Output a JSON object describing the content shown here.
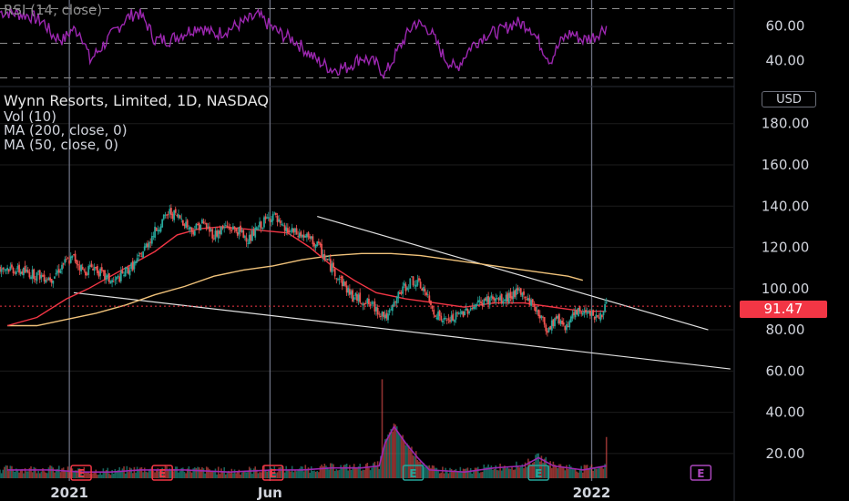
{
  "legend": {
    "title": "Wynn Resorts, Limited, 1D, NASDAQ",
    "vol": "Vol (10)",
    "ma200": "MA (200, close, 0)",
    "ma50": "MA (50, close, 0)",
    "rsi": "RSI (14, close)"
  },
  "currency": "USD",
  "last_price_label": "91.47",
  "colors": {
    "background": "#000000",
    "up": "#26a69a",
    "down": "#ef5350",
    "ma50": "#f23645",
    "ma200": "#f0c27a",
    "rsi": "#9c27b0",
    "trendline": "#e0e0e0",
    "earnings_red": "#f23645",
    "earnings_teal": "#26a69a",
    "earnings_purple": "#ab47bc"
  },
  "chart_data": {
    "type": "candlestick",
    "symbol": "Wynn Resorts, Limited",
    "interval": "1D",
    "exchange": "NASDAQ",
    "x_ticks": [
      "2021",
      "Jun",
      "2022"
    ],
    "y_ticks": [
      "180.00",
      "160.00",
      "140.00",
      "120.00",
      "100.00",
      "80.00",
      "60.00",
      "40.00",
      "20.00"
    ],
    "ylim": [
      8,
      198
    ],
    "last_price": 91.47,
    "price_path_keypoints": [
      [
        -30,
        110
      ],
      [
        0,
        105
      ],
      [
        8,
        112
      ],
      [
        15,
        115
      ],
      [
        22,
        108
      ],
      [
        28,
        111
      ],
      [
        35,
        106
      ],
      [
        42,
        103
      ],
      [
        50,
        108
      ],
      [
        58,
        113
      ],
      [
        65,
        122
      ],
      [
        72,
        130
      ],
      [
        80,
        137
      ],
      [
        88,
        134
      ],
      [
        95,
        128
      ],
      [
        102,
        132
      ],
      [
        110,
        126
      ],
      [
        118,
        130
      ],
      [
        126,
        128
      ],
      [
        134,
        124
      ],
      [
        142,
        131
      ],
      [
        150,
        136
      ],
      [
        156,
        129
      ],
      [
        164,
        127
      ],
      [
        172,
        125
      ],
      [
        180,
        121
      ],
      [
        188,
        112
      ],
      [
        196,
        104
      ],
      [
        204,
        96
      ],
      [
        212,
        94
      ],
      [
        220,
        90
      ],
      [
        228,
        86
      ],
      [
        236,
        98
      ],
      [
        244,
        104
      ],
      [
        252,
        100
      ],
      [
        258,
        90
      ],
      [
        266,
        84
      ],
      [
        274,
        86
      ],
      [
        282,
        90
      ],
      [
        290,
        93
      ],
      [
        298,
        95
      ],
      [
        306,
        94
      ],
      [
        314,
        98
      ],
      [
        322,
        96
      ],
      [
        330,
        88
      ],
      [
        336,
        80
      ],
      [
        342,
        86
      ],
      [
        348,
        82
      ],
      [
        356,
        88
      ],
      [
        364,
        90
      ],
      [
        370,
        85
      ],
      [
        376,
        92
      ]
    ],
    "ma50_keypoints": [
      [
        -30,
        82
      ],
      [
        -10,
        86
      ],
      [
        10,
        95
      ],
      [
        25,
        100
      ],
      [
        40,
        106
      ],
      [
        55,
        112
      ],
      [
        70,
        118
      ],
      [
        85,
        126
      ],
      [
        100,
        129
      ],
      [
        115,
        130
      ],
      [
        130,
        129
      ],
      [
        145,
        128
      ],
      [
        160,
        127
      ],
      [
        175,
        120
      ],
      [
        190,
        111
      ],
      [
        205,
        104
      ],
      [
        220,
        98
      ],
      [
        240,
        95
      ],
      [
        260,
        93
      ],
      [
        280,
        91
      ],
      [
        300,
        93
      ],
      [
        320,
        93
      ],
      [
        340,
        91
      ],
      [
        360,
        89
      ],
      [
        376,
        89
      ]
    ],
    "ma200_keypoints": [
      [
        -30,
        82
      ],
      [
        -10,
        82
      ],
      [
        10,
        85
      ],
      [
        30,
        88
      ],
      [
        50,
        92
      ],
      [
        70,
        97
      ],
      [
        90,
        101
      ],
      [
        110,
        106
      ],
      [
        130,
        109
      ],
      [
        150,
        111
      ],
      [
        170,
        114
      ],
      [
        190,
        116
      ],
      [
        210,
        117
      ],
      [
        230,
        117
      ],
      [
        250,
        116
      ],
      [
        270,
        114
      ],
      [
        290,
        112
      ],
      [
        310,
        110
      ],
      [
        330,
        108
      ],
      [
        350,
        106
      ],
      [
        360,
        104
      ]
    ],
    "volume_path_keypoints": [
      [
        -30,
        12
      ],
      [
        0,
        12
      ],
      [
        20,
        11
      ],
      [
        40,
        11
      ],
      [
        60,
        12
      ],
      [
        90,
        12
      ],
      [
        120,
        11
      ],
      [
        150,
        12
      ],
      [
        170,
        12
      ],
      [
        190,
        13
      ],
      [
        210,
        13
      ],
      [
        222,
        14
      ],
      [
        226,
        25
      ],
      [
        232,
        33
      ],
      [
        240,
        25
      ],
      [
        248,
        18
      ],
      [
        256,
        12
      ],
      [
        280,
        11
      ],
      [
        300,
        13
      ],
      [
        320,
        14
      ],
      [
        330,
        18
      ],
      [
        340,
        14
      ],
      [
        360,
        12
      ],
      [
        376,
        14
      ]
    ],
    "rsi": {
      "ylim": [
        25,
        75
      ],
      "ticks": [
        "60.00",
        "40.00"
      ],
      "band_levels": [
        70,
        50,
        30
      ],
      "keypoints": [
        [
          -30,
          68
        ],
        [
          -15,
          66
        ],
        [
          -5,
          62
        ],
        [
          0,
          55
        ],
        [
          8,
          52
        ],
        [
          14,
          58
        ],
        [
          20,
          56
        ],
        [
          26,
          40
        ],
        [
          34,
          48
        ],
        [
          42,
          56
        ],
        [
          50,
          64
        ],
        [
          58,
          68
        ],
        [
          64,
          62
        ],
        [
          70,
          52
        ],
        [
          80,
          52
        ],
        [
          90,
          56
        ],
        [
          100,
          60
        ],
        [
          110,
          55
        ],
        [
          120,
          58
        ],
        [
          130,
          62
        ],
        [
          140,
          66
        ],
        [
          148,
          60
        ],
        [
          156,
          55
        ],
        [
          164,
          52
        ],
        [
          172,
          46
        ],
        [
          180,
          40
        ],
        [
          190,
          35
        ],
        [
          200,
          36
        ],
        [
          210,
          42
        ],
        [
          220,
          38
        ],
        [
          226,
          32
        ],
        [
          236,
          48
        ],
        [
          246,
          62
        ],
        [
          256,
          58
        ],
        [
          266,
          42
        ],
        [
          274,
          35
        ],
        [
          284,
          48
        ],
        [
          294,
          55
        ],
        [
          304,
          57
        ],
        [
          314,
          62
        ],
        [
          324,
          60
        ],
        [
          332,
          48
        ],
        [
          338,
          40
        ],
        [
          346,
          52
        ],
        [
          352,
          56
        ],
        [
          360,
          52
        ],
        [
          368,
          54
        ],
        [
          376,
          60
        ]
      ]
    },
    "earnings_markers": [
      {
        "x": 20,
        "type": "red",
        "label": "E"
      },
      {
        "x": 75,
        "type": "red",
        "label": "E"
      },
      {
        "x": 150,
        "type": "red",
        "label": "E"
      },
      {
        "x": 245,
        "type": "teal",
        "label": "E"
      },
      {
        "x": 330,
        "type": "teal",
        "label": "E"
      },
      {
        "x": 440,
        "type": "purple",
        "label": "E"
      }
    ],
    "trendlines": [
      {
        "from": [
          180,
          135
        ],
        "to": [
          445,
          80
        ]
      },
      {
        "from": [
          15,
          98
        ],
        "to": [
          460,
          61
        ]
      }
    ],
    "year_divider_x": [
      12,
      148,
      366
    ]
  }
}
